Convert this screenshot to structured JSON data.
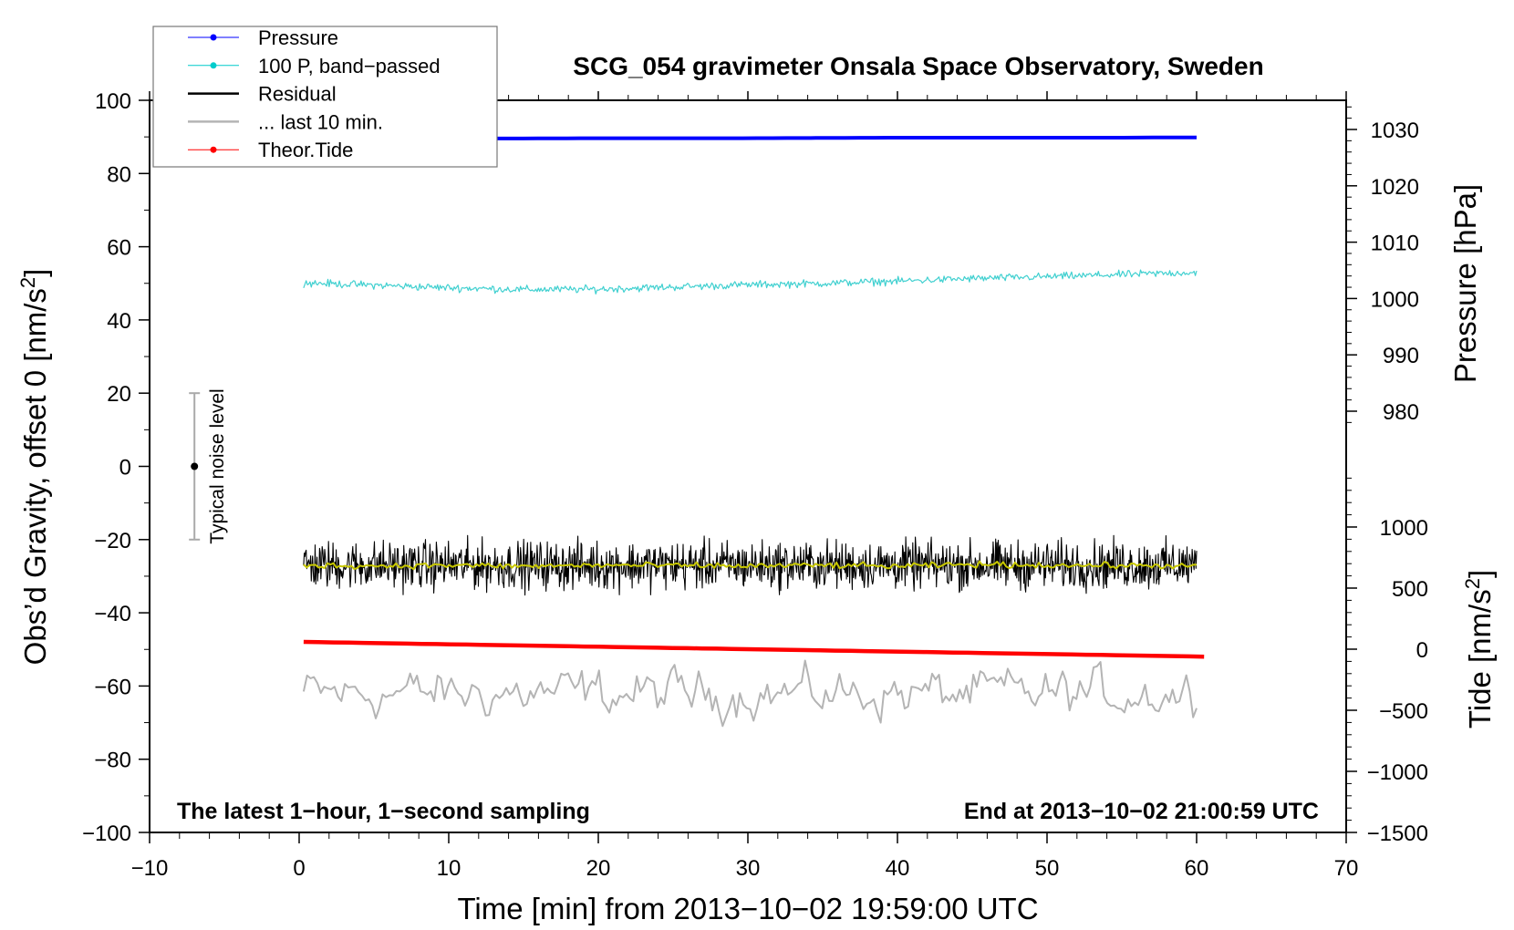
{
  "chart_data": {
    "type": "line",
    "title": "SCG_054 gravimeter Onsala Space Observatory, Sweden",
    "xlabel": "Time [min] from 2013−10−02 19:59:00 UTC",
    "ylabel_left": "Obs’d Gravity, offset 0 [nm/s",
    "ylabel_left_sup": "2",
    "ylabel_left_end": "]",
    "ylabel_right_pressure": "Pressure [hPa]",
    "ylabel_right_tide": "Tide [nm/s",
    "ylabel_right_tide_sup": "2",
    "ylabel_right_tide_end": "]",
    "xlim": [
      -10,
      70
    ],
    "ylim_left": [
      -100,
      100
    ],
    "pressure_axis_range": [
      980,
      1030
    ],
    "tide_axis_range": [
      -1500,
      1000
    ],
    "x_ticks": [
      "−10",
      "0",
      "10",
      "20",
      "30",
      "40",
      "50",
      "60",
      "70"
    ],
    "y_left_ticks": [
      "100",
      "80",
      "60",
      "40",
      "20",
      "0",
      "−20",
      "−40",
      "−60",
      "−80",
      "−100"
    ],
    "pressure_ticks": [
      "1030",
      "1020",
      "1010",
      "1000",
      "990",
      "980"
    ],
    "tide_ticks": [
      "1000",
      "500",
      "0",
      "−500",
      "−1000",
      "−1500"
    ],
    "annotation_left": "The latest 1−hour, 1−second sampling",
    "annotation_right": "End at 2013−10−02 21:00:59 UTC",
    "noise_bar": {
      "label": "Typical noise level",
      "x": -7,
      "center": 0,
      "low": -20,
      "high": 20
    },
    "legend": [
      {
        "label": "Pressure",
        "color": "#0000ff",
        "marker": true
      },
      {
        "label": "100 P, band−passed",
        "color": "#00cccc",
        "marker": true
      },
      {
        "label": "Residual",
        "color": "#000000",
        "marker": false
      },
      {
        "label": "... last 10 min.",
        "color": "#b4b4b4",
        "marker": false
      },
      {
        "label": "Theor.Tide",
        "color": "#ff0000",
        "marker": true
      }
    ],
    "x": [
      0,
      5,
      10,
      15,
      20,
      25,
      30,
      35,
      40,
      45,
      50,
      55,
      60
    ],
    "series": [
      {
        "name": "Pressure",
        "axis": "pressure",
        "color": "#0000ff",
        "values": [
          1028.4,
          1028.4,
          1028.4,
          1028.4,
          1028.45,
          1028.45,
          1028.45,
          1028.5,
          1028.55,
          1028.55,
          1028.55,
          1028.55,
          1028.6
        ]
      },
      {
        "name": "100 P, band-passed",
        "axis": "left",
        "color": "#40d0d0",
        "values": [
          50.2,
          49.5,
          48.8,
          48.3,
          48.4,
          49.0,
          49.6,
          50.0,
          50.6,
          51.3,
          51.8,
          52.4,
          53.0
        ],
        "noise": 0.5
      },
      {
        "name": "Residual",
        "axis": "left",
        "color": "#000000",
        "values": [
          -27,
          -27,
          -27,
          -27,
          -27,
          -27,
          -27,
          -27,
          -27,
          -27,
          -27,
          -27,
          -27
        ],
        "noise": 3.2
      },
      {
        "name": "Residual smoothed",
        "axis": "left",
        "color": "#c8c800",
        "values": [
          -27,
          -27.2,
          -27,
          -27.3,
          -27,
          -27.1,
          -27.2,
          -27,
          -27.3,
          -26.8,
          -27,
          -27.1,
          -27.2
        ],
        "noise": 0.4
      },
      {
        "name": "... last 10 min.",
        "axis": "left",
        "color": "#b4b4b4",
        "values": [
          -62,
          -62,
          -62,
          -62,
          -62,
          -62,
          -62,
          -62,
          -62,
          -62,
          -62,
          -62,
          -62
        ],
        "noise": 3.0
      },
      {
        "name": "Theor.Tide",
        "axis": "tide",
        "color": "#ff0000",
        "values": [
          60,
          50,
          40,
          30,
          20,
          10,
          0,
          -10,
          -20,
          -30,
          -40,
          -50,
          -60
        ]
      }
    ]
  }
}
